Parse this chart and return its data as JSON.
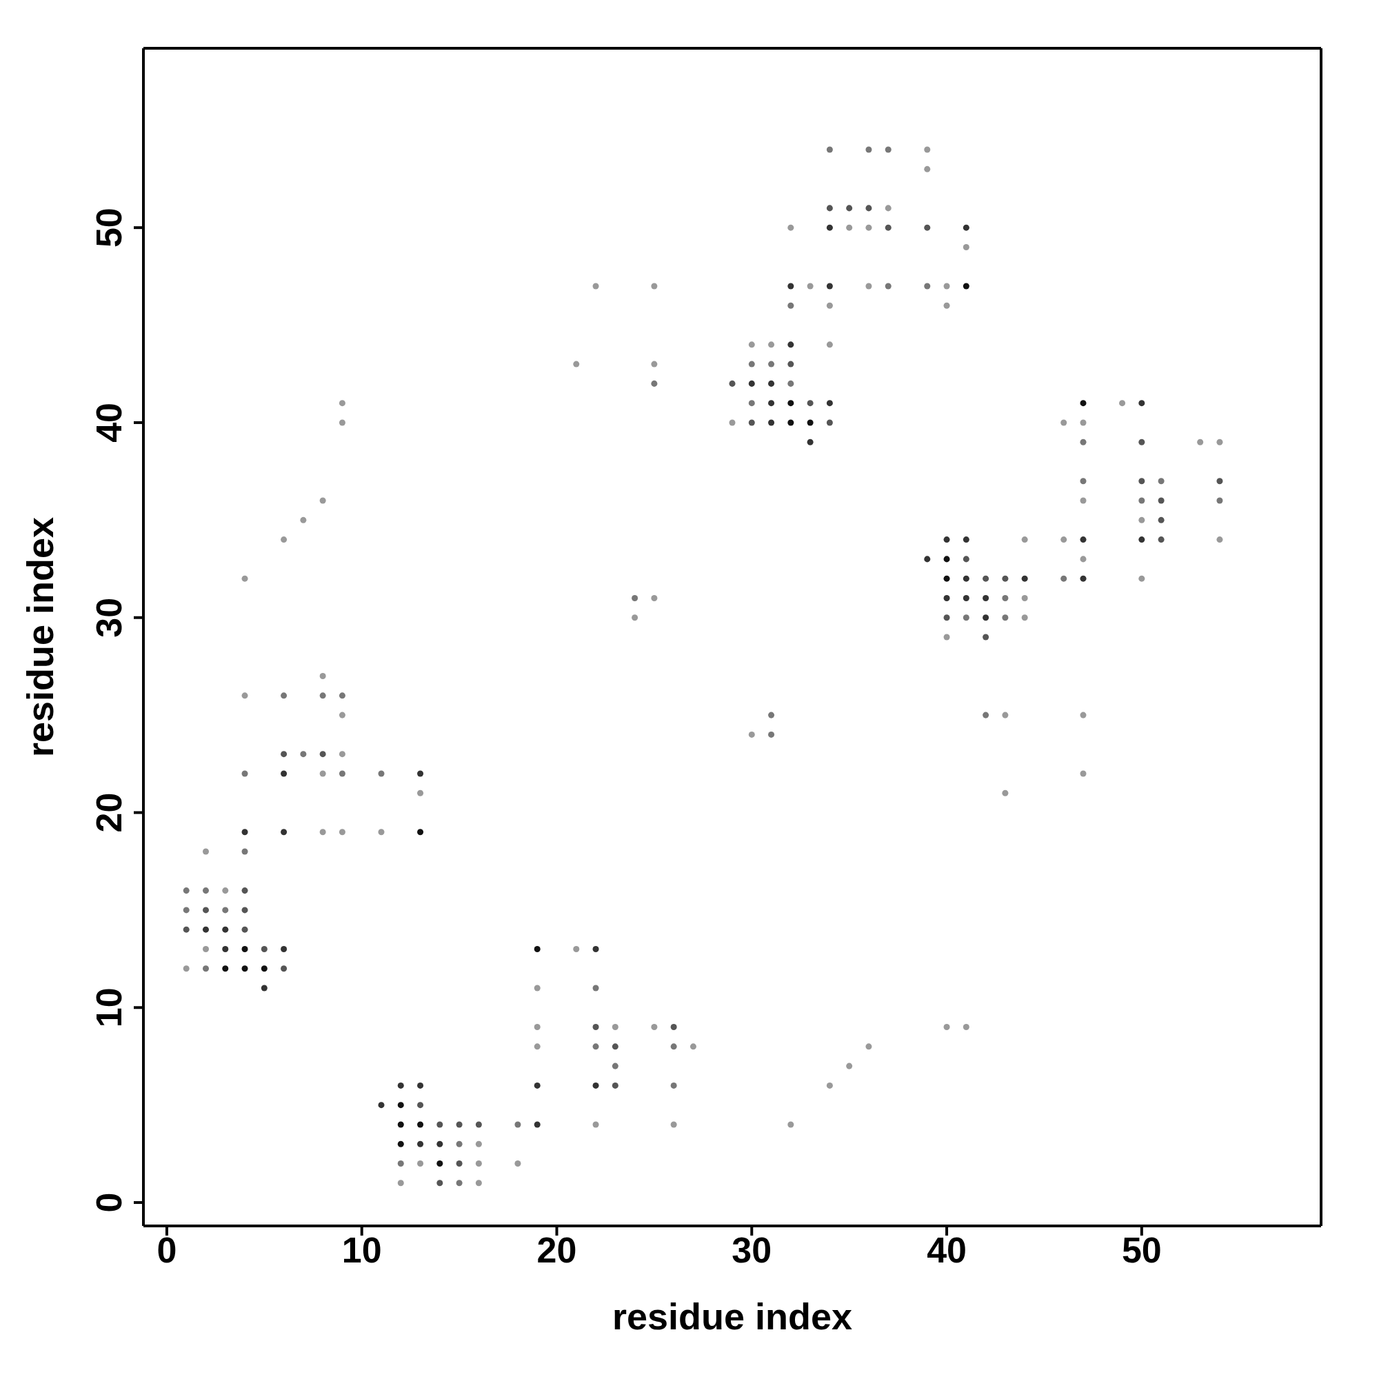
{
  "chart_data": {
    "type": "scatter",
    "xlabel": "residue index",
    "ylabel": "residue index",
    "xlim": [
      -1.2,
      59.2
    ],
    "ylim": [
      -1.2,
      59.2
    ],
    "xticks": [
      0,
      10,
      20,
      30,
      40,
      50
    ],
    "yticks": [
      0,
      10,
      20,
      30,
      40,
      50
    ],
    "marker": "circle",
    "series": [
      {
        "color": "#111111",
        "x": [
          3,
          4,
          4,
          5,
          12,
          12,
          12,
          13,
          13,
          14,
          19,
          32,
          32,
          33,
          40,
          40,
          41,
          47
        ],
        "values": [
          12,
          13,
          12,
          12,
          5,
          4,
          3,
          19,
          4,
          2,
          13,
          41,
          40,
          40,
          33,
          32,
          47,
          41
        ]
      },
      {
        "color": "#333333",
        "x": [
          2,
          3,
          3,
          4,
          5,
          6,
          6,
          6,
          11,
          12,
          13,
          13,
          13,
          14,
          19,
          19,
          22,
          22,
          30,
          31,
          31,
          31,
          32,
          32,
          33,
          34,
          34,
          34,
          39,
          40,
          40,
          41,
          41,
          41,
          41,
          42,
          42,
          44,
          47,
          47,
          50,
          50
        ],
        "values": [
          14,
          14,
          13,
          19,
          11,
          22,
          19,
          13,
          5,
          6,
          22,
          6,
          3,
          3,
          6,
          4,
          13,
          6,
          42,
          42,
          41,
          40,
          47,
          44,
          39,
          50,
          47,
          41,
          33,
          34,
          31,
          50,
          34,
          32,
          31,
          31,
          30,
          32,
          34,
          32,
          41,
          34
        ]
      },
      {
        "color": "#555555",
        "x": [
          1,
          2,
          4,
          4,
          4,
          5,
          6,
          6,
          8,
          13,
          14,
          14,
          15,
          15,
          16,
          22,
          23,
          23,
          26,
          29,
          30,
          32,
          33,
          34,
          34,
          35,
          36,
          37,
          39,
          40,
          41,
          42,
          42,
          43,
          50,
          50,
          51,
          51,
          51,
          54
        ],
        "values": [
          14,
          15,
          16,
          15,
          14,
          13,
          23,
          12,
          23,
          5,
          4,
          1,
          4,
          2,
          4,
          9,
          8,
          6,
          9,
          42,
          40,
          43,
          41,
          51,
          40,
          51,
          51,
          50,
          50,
          30,
          33,
          32,
          29,
          32,
          39,
          37,
          36,
          35,
          34,
          37
        ]
      },
      {
        "color": "#777777",
        "x": [
          1,
          1,
          2,
          2,
          3,
          4,
          4,
          6,
          7,
          8,
          9,
          9,
          11,
          12,
          15,
          15,
          18,
          22,
          22,
          23,
          24,
          25,
          26,
          26,
          30,
          30,
          31,
          31,
          31,
          32,
          32,
          34,
          36,
          37,
          37,
          39,
          41,
          42,
          43,
          43,
          46,
          47,
          47,
          50,
          51,
          54
        ],
        "values": [
          16,
          15,
          16,
          12,
          15,
          22,
          18,
          26,
          23,
          26,
          26,
          22,
          22,
          2,
          3,
          1,
          4,
          11,
          8,
          7,
          31,
          42,
          8,
          6,
          43,
          41,
          43,
          25,
          24,
          46,
          42,
          54,
          54,
          54,
          47,
          47,
          30,
          25,
          31,
          30,
          32,
          39,
          37,
          36,
          37,
          36
        ]
      },
      {
        "color": "#999999",
        "x": [
          1,
          2,
          2,
          3,
          4,
          4,
          6,
          7,
          8,
          8,
          8,
          8,
          9,
          9,
          9,
          9,
          9,
          11,
          12,
          13,
          13,
          16,
          16,
          16,
          18,
          19,
          19,
          19,
          21,
          21,
          22,
          22,
          23,
          24,
          25,
          25,
          25,
          25,
          26,
          27,
          29,
          30,
          30,
          31,
          32,
          32,
          33,
          34,
          34,
          34,
          35,
          35,
          36,
          36,
          36,
          37,
          39,
          39,
          40,
          40,
          40,
          40,
          41,
          41,
          43,
          43,
          44,
          44,
          44,
          46,
          46,
          47,
          47,
          47,
          47,
          47,
          49,
          50,
          50,
          53,
          54,
          54
        ],
        "values": [
          12,
          18,
          13,
          16,
          32,
          26,
          34,
          35,
          36,
          27,
          22,
          19,
          41,
          40,
          25,
          23,
          19,
          19,
          1,
          21,
          2,
          3,
          2,
          1,
          2,
          11,
          9,
          8,
          43,
          13,
          47,
          4,
          9,
          30,
          47,
          43,
          31,
          9,
          4,
          8,
          40,
          44,
          24,
          44,
          50,
          4,
          47,
          46,
          44,
          6,
          50,
          7,
          50,
          47,
          8,
          51,
          54,
          53,
          47,
          46,
          29,
          9,
          49,
          9,
          25,
          21,
          34,
          31,
          30,
          40,
          34,
          40,
          36,
          33,
          25,
          22,
          41,
          35,
          32,
          39,
          39,
          34
        ]
      }
    ]
  }
}
